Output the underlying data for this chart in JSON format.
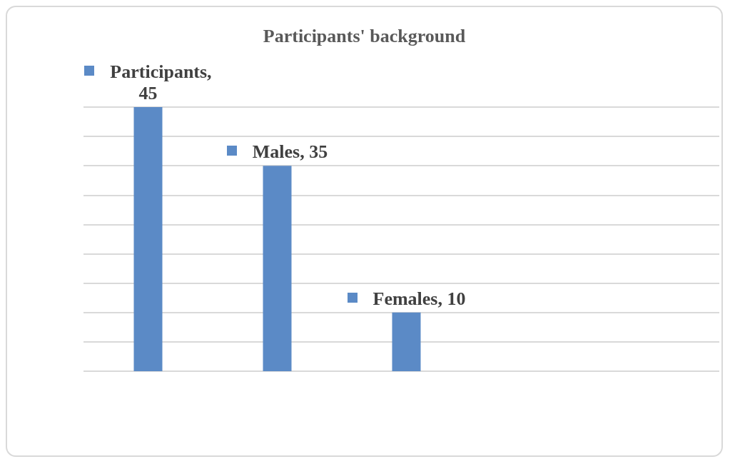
{
  "chart_data": {
    "type": "bar",
    "title": "Participants' background",
    "categories": [
      null,
      null,
      null
    ],
    "values": [
      45,
      35,
      10
    ],
    "value_labels": [
      "Participants, 45",
      "Males, 35",
      "Females, 10"
    ],
    "color": "#5b8ac6",
    "ylim": [
      0,
      45
    ],
    "yticks": [
      0,
      5,
      10,
      15,
      20,
      25,
      30,
      35,
      40,
      45
    ],
    "grid": "y",
    "tick_labels": false
  }
}
